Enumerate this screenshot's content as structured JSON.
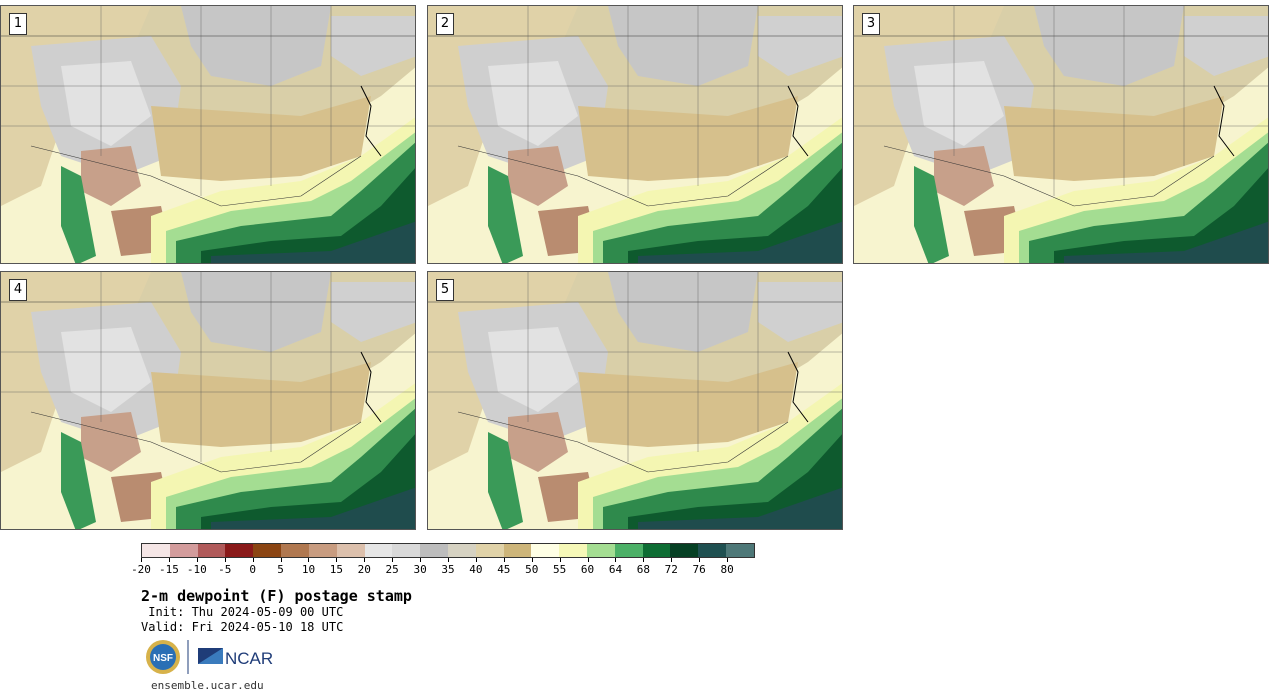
{
  "panels": [
    {
      "label": "1"
    },
    {
      "label": "2"
    },
    {
      "label": "3"
    },
    {
      "label": "4"
    },
    {
      "label": "5"
    }
  ],
  "colorbar": {
    "colors": [
      "#f5e6e6",
      "#d39c9c",
      "#b05a5a",
      "#8a1a1a",
      "#8b4513",
      "#b07850",
      "#c89c80",
      "#dcc0ac",
      "#e6e6e6",
      "#d9d9d9",
      "#bdbdbd",
      "#d6d2c2",
      "#e0d2a8",
      "#cdb57a",
      "#ffffe5",
      "#f6f8b8",
      "#a4dd92",
      "#4cb067",
      "#0e6d34",
      "#064024",
      "#1f5051",
      "#4e7878"
    ],
    "tick_labels": [
      "-20",
      "-15",
      "-10",
      "-5",
      "0",
      "5",
      "10",
      "15",
      "20",
      "25",
      "30",
      "35",
      "40",
      "45",
      "50",
      "55",
      "60",
      "64",
      "68",
      "72",
      "76",
      "80"
    ]
  },
  "title": "2-m dewpoint (F) postage stamp",
  "init": " Init: Thu 2024-05-09 00 UTC",
  "valid": "Valid: Fri 2024-05-10 18 UTC",
  "logos": {
    "nsf": "NSF",
    "ncar": "NCAR"
  },
  "site": "ensemble.ucar.edu"
}
